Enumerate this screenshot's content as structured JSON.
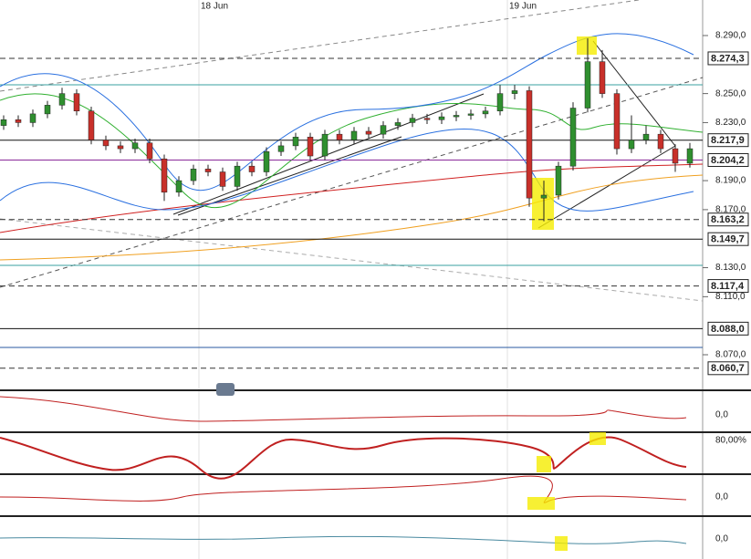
{
  "chart_data": {
    "type": "candlestick",
    "date_labels": [
      "18 Jun",
      "19 Jun"
    ],
    "open": [
      8.228,
      8.232,
      8.23,
      8.236,
      8.242,
      8.25,
      8.238,
      8.218,
      8.214,
      8.212,
      8.216,
      8.205,
      8.182,
      8.19,
      8.198,
      8.196,
      8.186,
      8.2,
      8.196,
      8.21,
      8.214,
      8.22,
      8.207,
      8.222,
      8.218,
      8.224,
      8.222,
      8.228,
      8.23,
      8.233,
      8.232,
      8.234,
      8.235,
      8.236,
      8.238,
      8.25,
      8.252,
      8.178,
      8.18,
      8.2,
      8.24,
      8.272,
      8.25,
      8.212,
      8.218,
      8.222,
      8.212,
      8.202
    ],
    "high": [
      8.235,
      8.235,
      8.239,
      8.245,
      8.254,
      8.253,
      8.241,
      8.221,
      8.217,
      8.219,
      8.219,
      8.208,
      8.193,
      8.201,
      8.201,
      8.199,
      8.203,
      8.203,
      8.213,
      8.217,
      8.223,
      8.223,
      8.225,
      8.225,
      8.227,
      8.227,
      8.231,
      8.233,
      8.236,
      8.236,
      8.237,
      8.238,
      8.239,
      8.241,
      8.256,
      8.256,
      8.255,
      8.19,
      8.203,
      8.244,
      8.288,
      8.28,
      8.253,
      8.235,
      8.228,
      8.225,
      8.215,
      8.216
    ],
    "low": [
      8.225,
      8.227,
      8.227,
      8.233,
      8.239,
      8.235,
      8.215,
      8.211,
      8.209,
      8.209,
      8.202,
      8.176,
      8.179,
      8.187,
      8.193,
      8.183,
      8.183,
      8.193,
      8.193,
      8.207,
      8.211,
      8.204,
      8.204,
      8.215,
      8.215,
      8.219,
      8.219,
      8.225,
      8.227,
      8.229,
      8.229,
      8.231,
      8.232,
      8.233,
      8.235,
      8.246,
      8.172,
      8.162,
      8.177,
      8.197,
      8.237,
      8.247,
      8.208,
      8.209,
      8.215,
      8.209,
      8.196,
      8.199
    ],
    "close": [
      8.232,
      8.23,
      8.236,
      8.242,
      8.25,
      8.238,
      8.218,
      8.214,
      8.212,
      8.216,
      8.205,
      8.182,
      8.19,
      8.198,
      8.196,
      8.186,
      8.2,
      8.196,
      8.21,
      8.214,
      8.22,
      8.207,
      8.222,
      8.218,
      8.224,
      8.222,
      8.228,
      8.23,
      8.233,
      8.232,
      8.234,
      8.235,
      8.236,
      8.238,
      8.25,
      8.252,
      8.178,
      8.18,
      8.2,
      8.24,
      8.272,
      8.25,
      8.212,
      8.218,
      8.222,
      8.212,
      8.202,
      8.212
    ],
    "up_color": "#2f8f2f",
    "down_color": "#c8302a",
    "ylim": [
      8.048,
      8.3145
    ],
    "yticks": [
      {
        "value": 8.29,
        "label": "8.290,0"
      },
      {
        "value": 8.25,
        "label": "8.250,0"
      },
      {
        "value": 8.23,
        "label": "8.230,0"
      },
      {
        "value": 8.19,
        "label": "8.190,0"
      },
      {
        "value": 8.17,
        "label": "8.170,0"
      },
      {
        "value": 8.13,
        "label": "8.130,0"
      },
      {
        "value": 8.11,
        "label": "8.110,0"
      },
      {
        "value": 8.07,
        "label": "8.070,0"
      }
    ],
    "levels": [
      {
        "value": 8.2743,
        "label": "8.274,3",
        "style": "dashed",
        "color": "#333333"
      },
      {
        "value": 8.2179,
        "label": "8.217,9",
        "style": "solid",
        "color": "#111111"
      },
      {
        "value": 8.2042,
        "label": "8.204,2",
        "style": "solid",
        "color": "#8a2a9a"
      },
      {
        "value": 8.1632,
        "label": "8.163,2",
        "style": "dashed",
        "color": "#333333"
      },
      {
        "value": 8.1497,
        "label": "8.149,7",
        "style": "solid",
        "color": "#111111"
      },
      {
        "value": 8.1174,
        "label": "8.117,4",
        "style": "dashed",
        "color": "#333333"
      },
      {
        "value": 8.088,
        "label": "8.088,0",
        "style": "solid",
        "color": "#111111"
      },
      {
        "value": 8.0607,
        "label": "8.060,7",
        "style": "dashed",
        "color": "#333333"
      }
    ],
    "indicator_ticks": [
      "0,0",
      "80,00%",
      "0,0",
      "0,0"
    ]
  }
}
